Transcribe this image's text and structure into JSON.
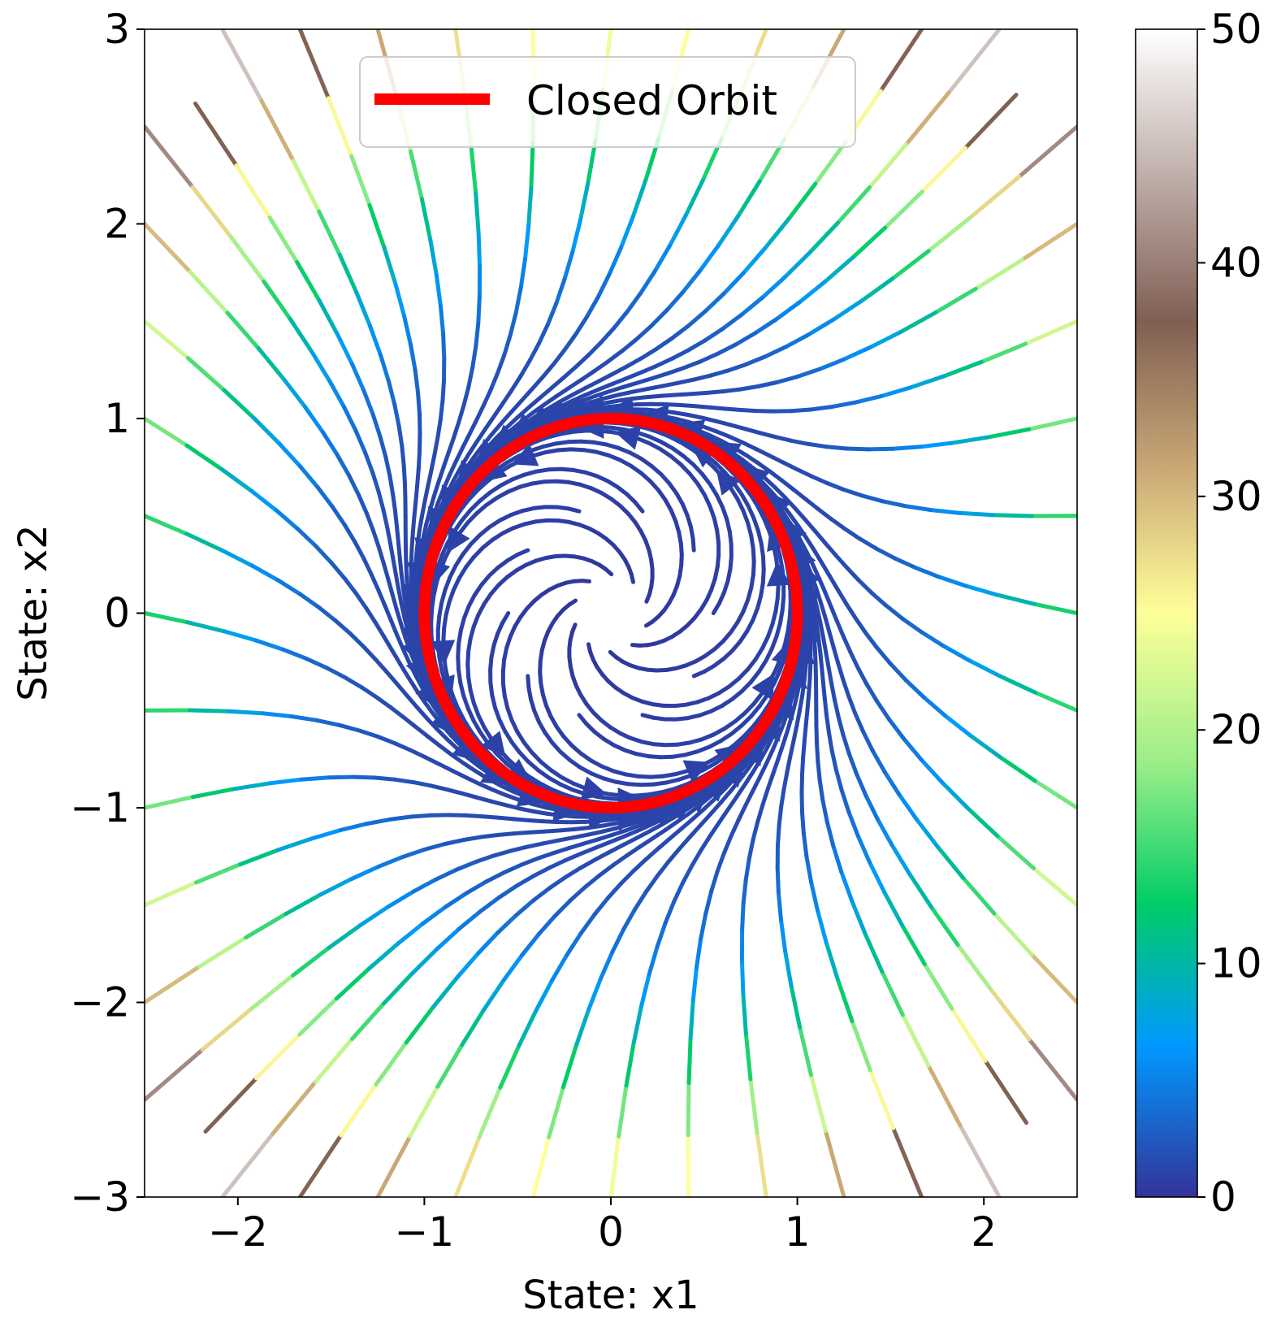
{
  "chart_data": {
    "type": "streamplot",
    "xlabel": "State: x1",
    "ylabel": "State: x2",
    "xlim": [
      -2.5,
      2.5
    ],
    "ylim": [
      -3,
      3
    ],
    "x_ticks": [
      -2,
      -1,
      0,
      1,
      2
    ],
    "y_ticks": [
      -3,
      -2,
      -1,
      0,
      1,
      2,
      3
    ],
    "x_tick_labels": [
      "−2",
      "−1",
      "0",
      "1",
      "2"
    ],
    "y_tick_labels": [
      "−3",
      "−2",
      "−1",
      "0",
      "1",
      "2",
      "3"
    ],
    "grid": false,
    "legend": {
      "location": "upper-center",
      "entries": [
        {
          "label": "Closed Orbit",
          "color": "#ff0000"
        }
      ]
    },
    "closed_orbit": {
      "center": [
        0,
        0
      ],
      "radius": 1,
      "color": "#ff0000"
    },
    "vector_field": "dx1/dt = -x2 + x1(1 - x1^2 - x2^2), dx2/dt = x1 + x2(1 - x1^2 - x2^2)",
    "colorbar": {
      "colormap": "terrain",
      "range": [
        0,
        50
      ],
      "ticks": [
        0,
        10,
        20,
        30,
        40,
        50
      ],
      "tick_labels": [
        "0",
        "10",
        "20",
        "30",
        "40",
        "50"
      ],
      "color_stops": [
        "#333399",
        "#0099ff",
        "#00cc66",
        "#99ee88",
        "#ffff99",
        "#ccaa77",
        "#805f54",
        "#ffffff"
      ]
    }
  }
}
